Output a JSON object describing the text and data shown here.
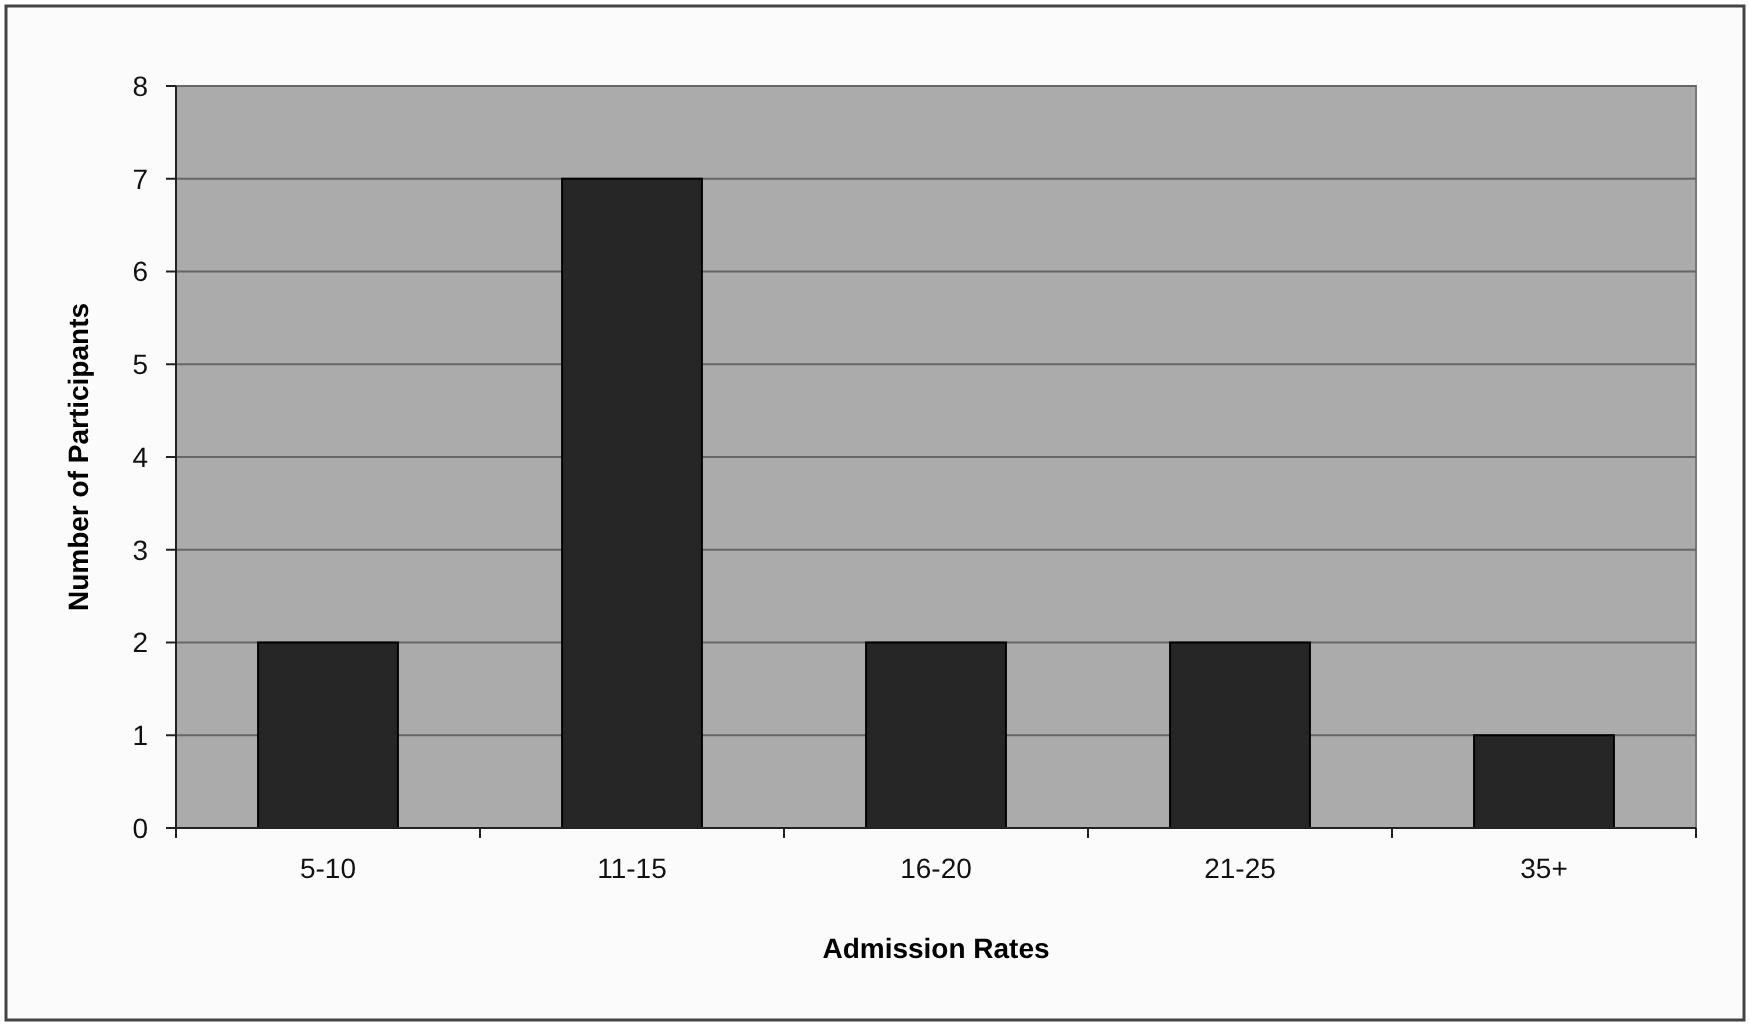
{
  "chart_data": {
    "type": "bar",
    "xlabel": "Admission Rates",
    "ylabel": "Number of Participants",
    "categories": [
      "5-10",
      "11-15",
      "16-20",
      "21-25",
      "35+"
    ],
    "values": [
      2,
      7,
      2,
      2,
      1
    ],
    "color": "#262626",
    "ylim": [
      0,
      8
    ],
    "yticks": [
      0,
      1,
      2,
      3,
      4,
      5,
      6,
      7,
      8
    ],
    "grid": "y"
  }
}
